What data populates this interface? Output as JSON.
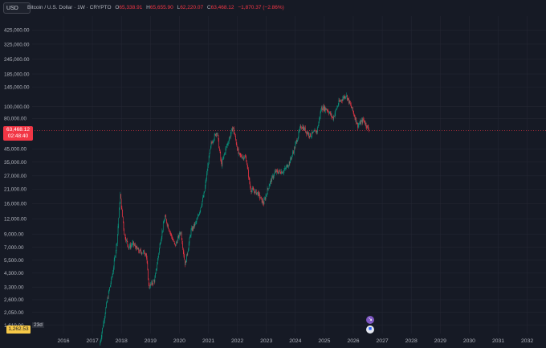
{
  "toolbar": {
    "currency_label": "USD"
  },
  "header": {
    "symbol": "Bitcoin / U.S. Dollar · 1W · CRYPTO",
    "ohlc": [
      {
        "key": "O",
        "value": "65,338.91"
      },
      {
        "key": "H",
        "value": "65,655.90"
      },
      {
        "key": "L",
        "value": "62,220.07"
      },
      {
        "key": "C",
        "value": "63,468.12"
      },
      {
        "key": "",
        "value": "−1,870.37 (−2.86%)"
      }
    ]
  },
  "price_tag": {
    "price": "63,468.12",
    "countdown": "02:48:40"
  },
  "bottom_tag": {
    "price": "1,262.53",
    "countdown": "23d"
  },
  "colors": {
    "background": "#161a25",
    "up": "#089981",
    "down": "#f23645",
    "grid": "#232632",
    "text": "#b2b5be"
  },
  "events": [
    {
      "icon": "exchange-icon",
      "glyph": "↘"
    },
    {
      "icon": "flag-icon",
      "glyph": "■"
    }
  ],
  "chart_data": {
    "type": "candlestick",
    "title": "Bitcoin / U.S. Dollar · 1W · CRYPTO",
    "y_scale": "log",
    "y_ticks": [
      "425,000.00",
      "325,000.00",
      "245,000.00",
      "185,000.00",
      "145,000.00",
      "100,000.00",
      "80,000.00",
      "45,000.00",
      "35,000.00",
      "27,000.00",
      "21,000.00",
      "16,000.00",
      "12,000.00",
      "9,000.00",
      "7,000.00",
      "5,500.00",
      "4,300.00",
      "3,300.00",
      "2,600.00",
      "2,050.00",
      "1,610.00"
    ],
    "x_ticks": [
      "2016",
      "2017",
      "2018",
      "2019",
      "2020",
      "2021",
      "2022",
      "2023",
      "2024",
      "2025",
      "2026",
      "2027",
      "2028",
      "2029",
      "2030",
      "2031",
      "2032"
    ],
    "last_price": 63468.12,
    "path": [
      [
        2017.25,
        1100
      ],
      [
        2017.5,
        2500
      ],
      [
        2017.7,
        4300
      ],
      [
        2017.85,
        8000
      ],
      [
        2017.96,
        19000
      ],
      [
        2018.1,
        9000
      ],
      [
        2018.25,
        7000
      ],
      [
        2018.4,
        7500
      ],
      [
        2018.6,
        6500
      ],
      [
        2018.85,
        6300
      ],
      [
        2018.95,
        3300
      ],
      [
        2019.15,
        3800
      ],
      [
        2019.35,
        8000
      ],
      [
        2019.5,
        12500
      ],
      [
        2019.7,
        9000
      ],
      [
        2019.85,
        7200
      ],
      [
        2020.05,
        9500
      ],
      [
        2020.2,
        5000
      ],
      [
        2020.4,
        9500
      ],
      [
        2020.6,
        11500
      ],
      [
        2020.85,
        19000
      ],
      [
        2021.0,
        35000
      ],
      [
        2021.1,
        50000
      ],
      [
        2021.3,
        63000
      ],
      [
        2021.45,
        33000
      ],
      [
        2021.6,
        45000
      ],
      [
        2021.85,
        68000
      ],
      [
        2022.05,
        40000
      ],
      [
        2022.3,
        38000
      ],
      [
        2022.45,
        21000
      ],
      [
        2022.7,
        19500
      ],
      [
        2022.9,
        16000
      ],
      [
        2023.1,
        23000
      ],
      [
        2023.3,
        29000
      ],
      [
        2023.6,
        29500
      ],
      [
        2023.8,
        35000
      ],
      [
        2023.95,
        44000
      ],
      [
        2024.2,
        70000
      ],
      [
        2024.5,
        58000
      ],
      [
        2024.75,
        63000
      ],
      [
        2024.9,
        98000
      ],
      [
        2025.1,
        95000
      ],
      [
        2025.3,
        80000
      ],
      [
        2025.5,
        108000
      ],
      [
        2025.75,
        125000
      ],
      [
        2025.85,
        110000
      ],
      [
        2026.0,
        90000
      ],
      [
        2026.15,
        70000
      ],
      [
        2026.35,
        78000
      ],
      [
        2026.55,
        63468.12
      ]
    ]
  }
}
